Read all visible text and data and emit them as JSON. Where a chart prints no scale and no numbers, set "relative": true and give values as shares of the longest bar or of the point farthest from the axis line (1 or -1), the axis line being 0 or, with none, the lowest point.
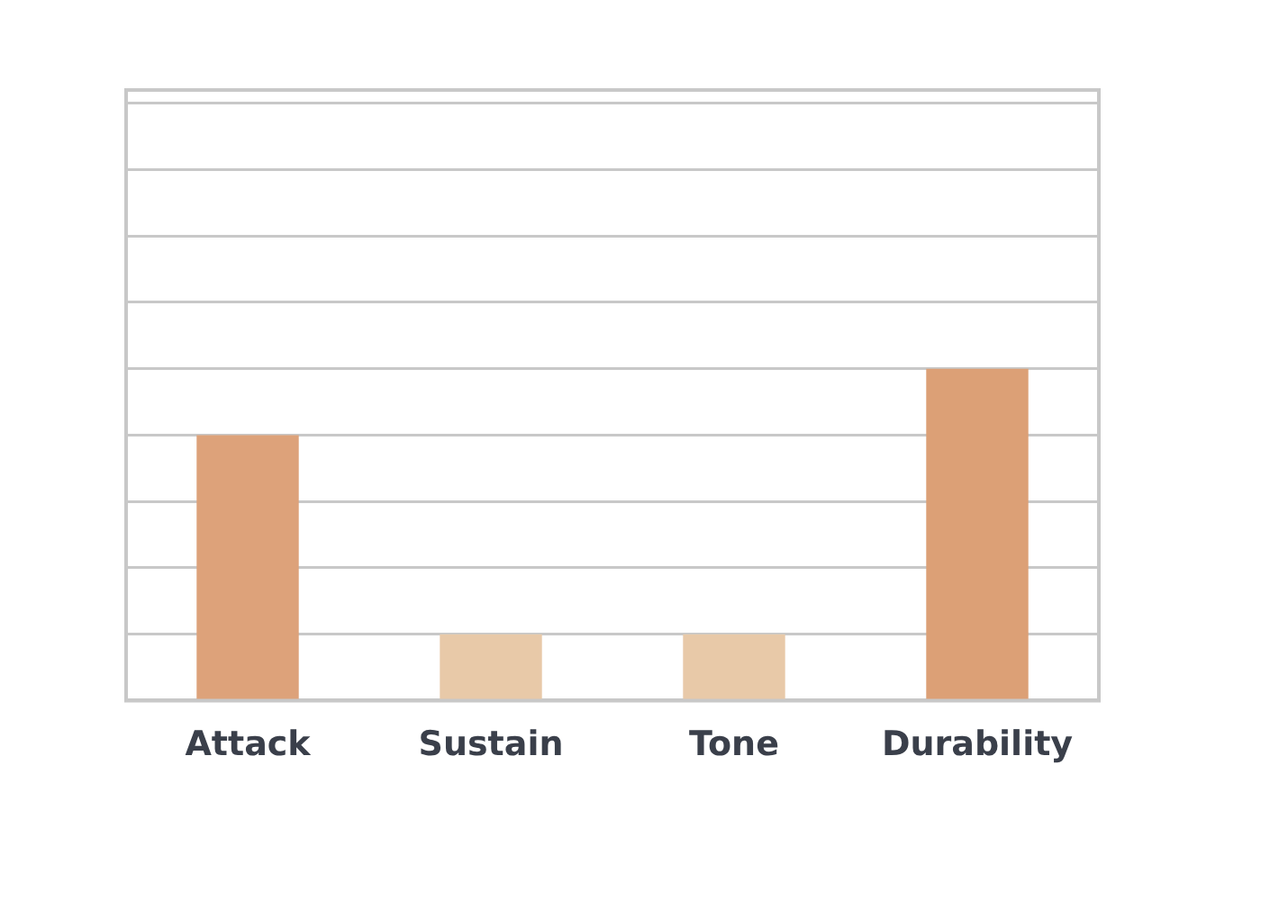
{
  "chart_data": {
    "type": "bar",
    "relative": true,
    "categories": [
      "Attack",
      "Sustain",
      "Tone",
      "Durability"
    ],
    "values": [
      0.8,
      0.2,
      0.2,
      1
    ],
    "colors": [
      "#dda27a",
      "#e8c9a8",
      "#e8c9a8",
      "#dca076"
    ],
    "grid": "y",
    "legend": false
  }
}
